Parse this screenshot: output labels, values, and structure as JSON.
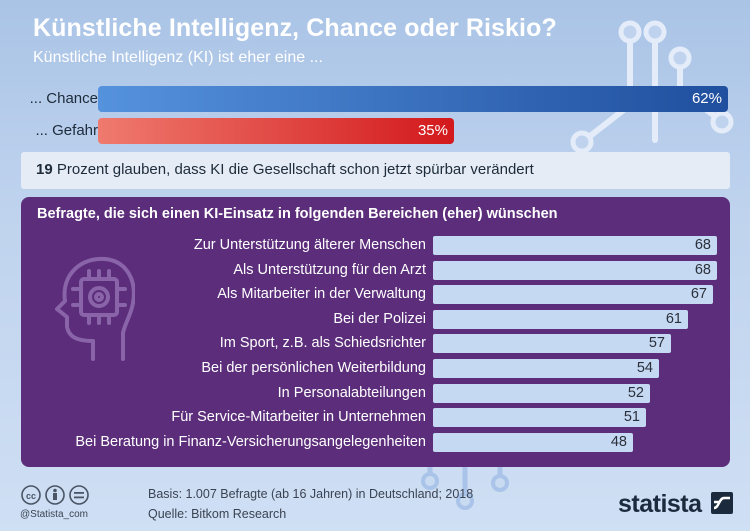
{
  "header": {
    "title": "Künstliche Intelligenz, Chance oder Riskio?",
    "subtitle": "Künstliche Intelligenz (KI) ist eher eine ..."
  },
  "top_bars": [
    {
      "label": "... Chance",
      "value": 62,
      "value_label": "62%",
      "color_start": "#5592dd",
      "color_end": "#1f4f9e"
    },
    {
      "label": "... Gefahr",
      "value": 35,
      "value_label": "35%",
      "color_start": "#ef7a6e",
      "color_end": "#d3191c"
    }
  ],
  "stat": {
    "number": "19",
    "text": "Prozent glauben, dass KI die Gesellschaft schon jetzt spürbar verändert"
  },
  "chart_data": {
    "type": "bar",
    "orientation": "horizontal",
    "title": "Befragte, die sich einen KI-Einsatz in folgenden Bereichen (eher) wünschen",
    "categories": [
      "Zur Unterstützung älterer Menschen",
      "Als Unterstützung für den Arzt",
      "Als Mitarbeiter in der Verwaltung",
      "Bei der Polizei",
      "Im Sport, z.B. als Schiedsrichter",
      "Bei der persönlichen Weiterbildung",
      "In Personalabteilungen",
      "Für Service-Mitarbeiter in Unternehmen",
      "Bei Beratung in Finanz-Versicherungsangelegenheiten"
    ],
    "values": [
      68,
      68,
      67,
      61,
      57,
      54,
      52,
      51,
      48
    ],
    "value_labels": [
      "68",
      "68",
      "67",
      "61",
      "57",
      "54",
      "52",
      "51",
      "48"
    ],
    "bar_color": "#c5d9f2",
    "panel_color": "#5c2d7b"
  },
  "footer": {
    "handle": "@Statista_com",
    "basis": "Basis: 1.007 Befragte (ab 16 Jahren) in Deutschland; 2018",
    "source": "Quelle: Bitkom Research",
    "logo": "statista"
  }
}
